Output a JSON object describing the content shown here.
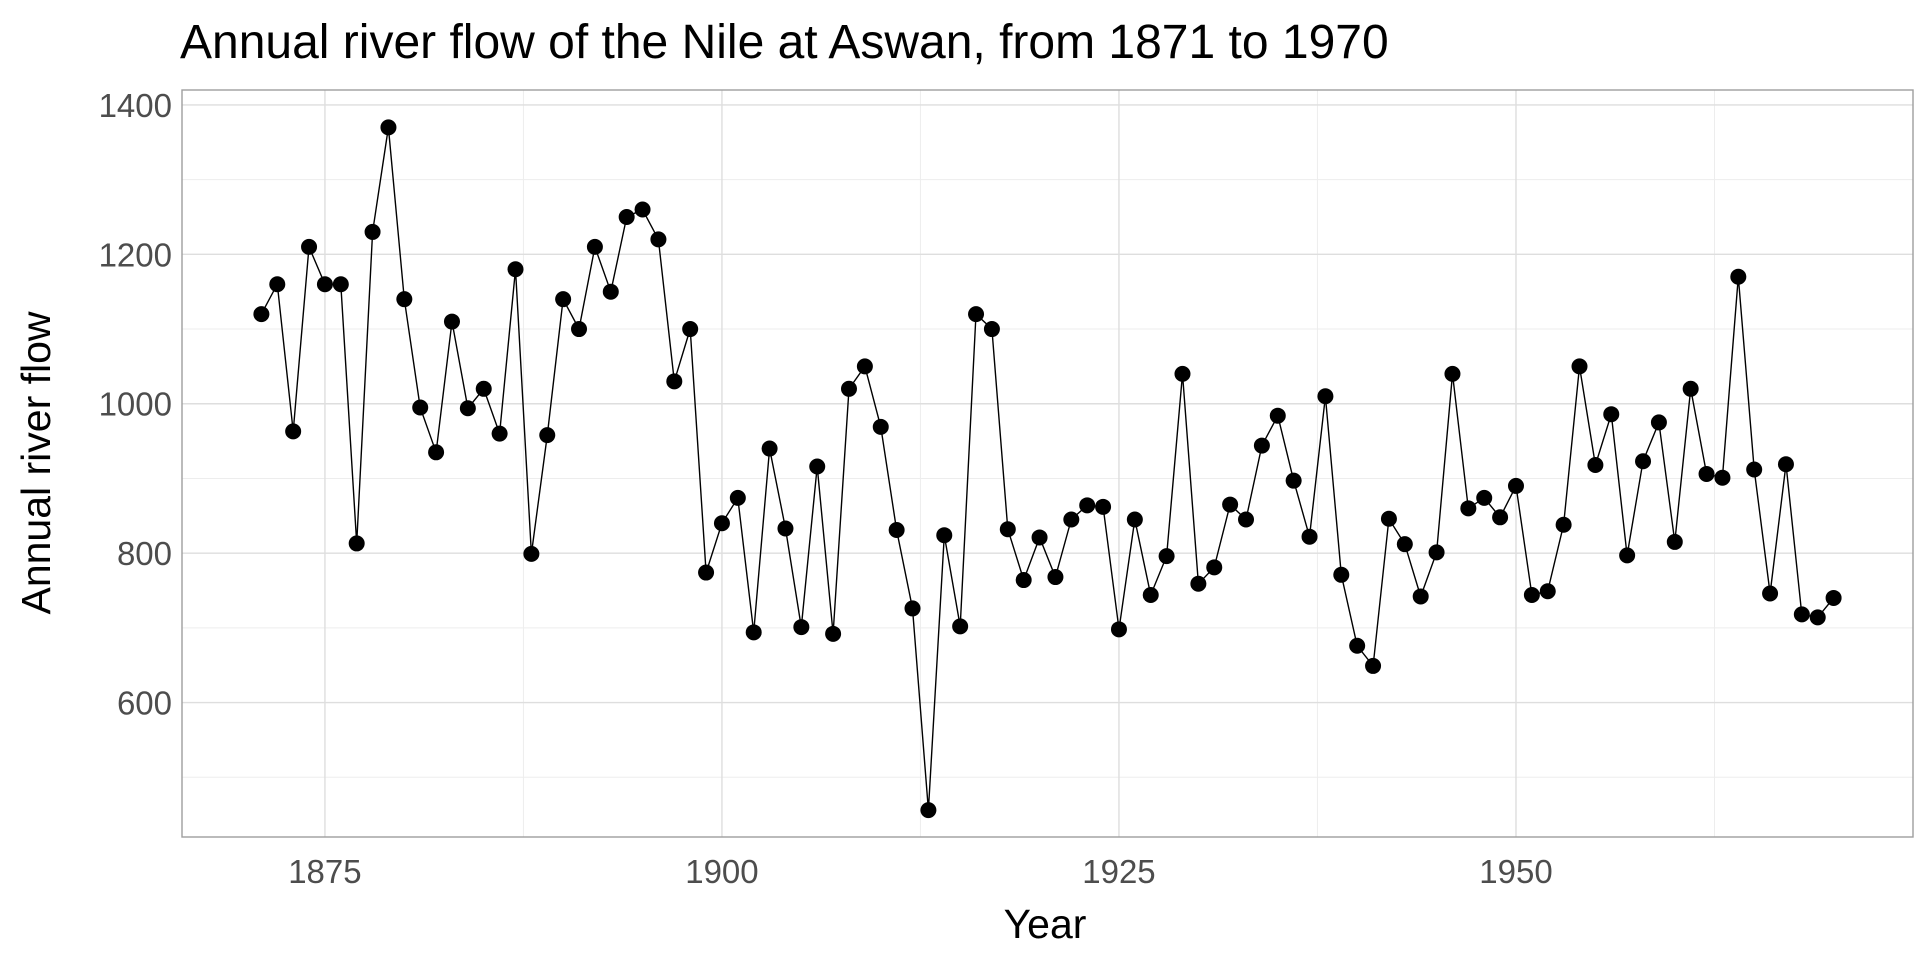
{
  "chart_data": {
    "type": "line",
    "title": "Annual river flow of the Nile at Aswan, from 1871 to 1970",
    "xlabel": "Year",
    "ylabel": "Annual river flow",
    "x_ticks": [
      1875,
      1900,
      1925,
      1950
    ],
    "y_ticks": [
      600,
      800,
      1000,
      1200,
      1400
    ],
    "xlim": [
      1866,
      1975
    ],
    "ylim": [
      420,
      1420
    ],
    "grid": true,
    "legend": "none",
    "series": [
      {
        "marker": "point",
        "color": "#000000",
        "x": [
          1871,
          1872,
          1873,
          1874,
          1875,
          1876,
          1877,
          1878,
          1879,
          1880,
          1881,
          1882,
          1883,
          1884,
          1885,
          1886,
          1887,
          1888,
          1889,
          1890,
          1891,
          1892,
          1893,
          1894,
          1895,
          1896,
          1897,
          1898,
          1899,
          1900,
          1901,
          1902,
          1903,
          1904,
          1905,
          1906,
          1907,
          1908,
          1909,
          1910,
          1911,
          1912,
          1913,
          1914,
          1915,
          1916,
          1917,
          1918,
          1919,
          1920,
          1921,
          1922,
          1923,
          1924,
          1925,
          1926,
          1927,
          1928,
          1929,
          1930,
          1931,
          1932,
          1933,
          1934,
          1935,
          1936,
          1937,
          1938,
          1939,
          1940,
          1941,
          1942,
          1943,
          1944,
          1945,
          1946,
          1947,
          1948,
          1949,
          1950,
          1951,
          1952,
          1953,
          1954,
          1955,
          1956,
          1957,
          1958,
          1959,
          1960,
          1961,
          1962,
          1963,
          1964,
          1965,
          1966,
          1967,
          1968,
          1969,
          1970
        ],
        "y": [
          1120,
          1160,
          963,
          1210,
          1160,
          1160,
          813,
          1230,
          1370,
          1140,
          995,
          935,
          1110,
          994,
          1020,
          960,
          1180,
          799,
          958,
          1140,
          1100,
          1210,
          1150,
          1250,
          1260,
          1220,
          1030,
          1100,
          774,
          840,
          874,
          694,
          940,
          833,
          701,
          916,
          692,
          1020,
          1050,
          969,
          831,
          726,
          456,
          824,
          702,
          1120,
          1100,
          832,
          764,
          821,
          768,
          845,
          864,
          862,
          698,
          845,
          744,
          796,
          1040,
          759,
          781,
          865,
          845,
          944,
          984,
          897,
          822,
          1010,
          771,
          676,
          649,
          846,
          812,
          742,
          801,
          1040,
          860,
          874,
          848,
          890,
          744,
          749,
          838,
          1050,
          918,
          986,
          797,
          923,
          975,
          815,
          1020,
          906,
          901,
          1170,
          912,
          746,
          919,
          718,
          714,
          740
        ]
      }
    ]
  }
}
